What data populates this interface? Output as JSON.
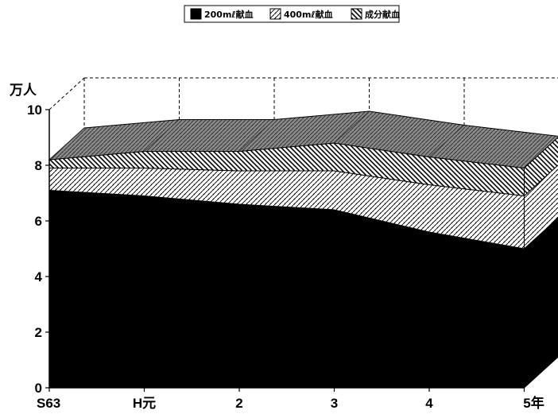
{
  "chart_data": {
    "type": "area",
    "stacked": true,
    "three_d": true,
    "title": "",
    "ylabel": "万人",
    "xlabel": "",
    "ylim": [
      0,
      10
    ],
    "yticks": [
      0,
      2,
      4,
      6,
      8,
      10
    ],
    "categories": [
      "S63",
      "H元",
      "2",
      "3",
      "4",
      "5年"
    ],
    "series": [
      {
        "name": "200mℓ献血",
        "pattern": "solid-black",
        "values": [
          7.1,
          6.9,
          6.6,
          6.4,
          5.6,
          5.0
        ]
      },
      {
        "name": "400mℓ献血",
        "pattern": "dotted-weave",
        "values": [
          0.8,
          1.0,
          1.2,
          1.4,
          1.7,
          1.9
        ]
      },
      {
        "name": "成分献血",
        "pattern": "diagonal-hatch",
        "values": [
          0.3,
          0.6,
          0.7,
          1.0,
          1.0,
          1.0
        ]
      }
    ],
    "legend": {
      "position": "top-center"
    },
    "grid": false
  }
}
